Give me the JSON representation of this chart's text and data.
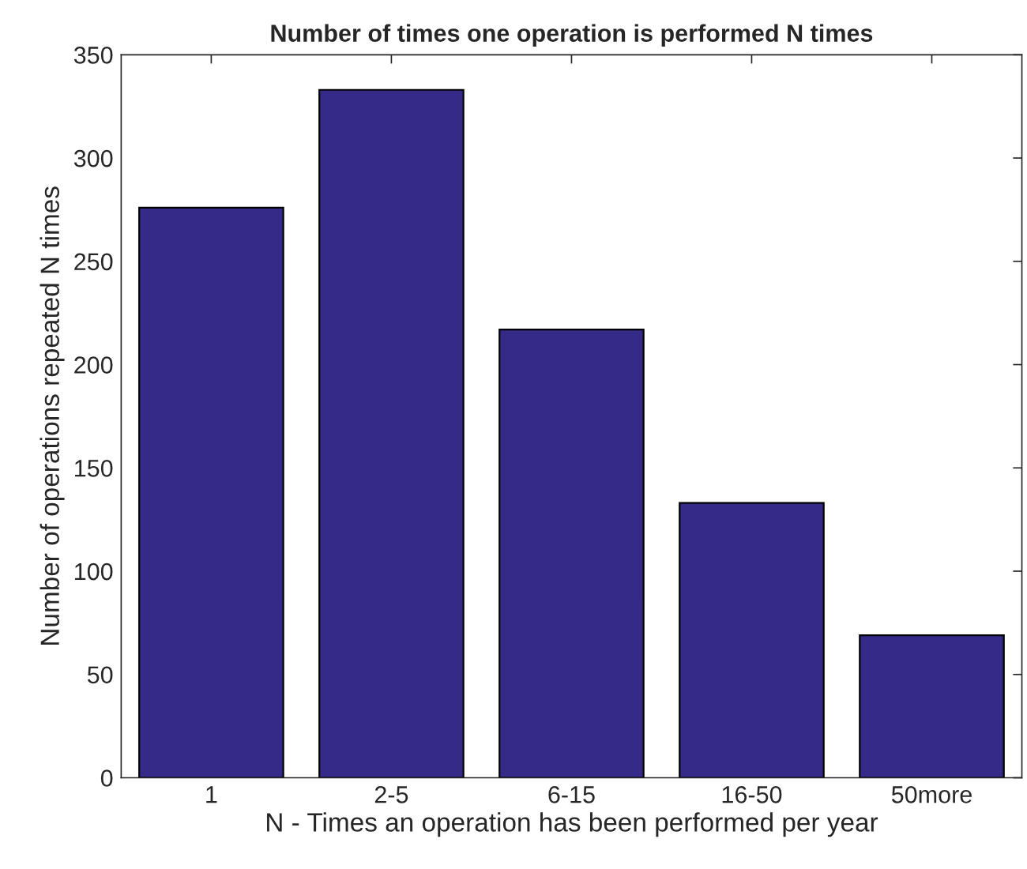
{
  "chart_data": {
    "type": "bar",
    "title": "Number of times one operation is performed N times",
    "xlabel": "N - Times an operation has been performed per year",
    "ylabel": "Number of operations repeated N times",
    "categories": [
      "1",
      "2-5",
      "6-15",
      "16-50",
      "50more"
    ],
    "values": [
      276,
      333,
      217,
      133,
      69
    ],
    "color": "#352a87",
    "ylim": [
      0,
      350
    ],
    "yticks": [
      0,
      50,
      100,
      150,
      200,
      250,
      300,
      350
    ],
    "grid": false
  }
}
